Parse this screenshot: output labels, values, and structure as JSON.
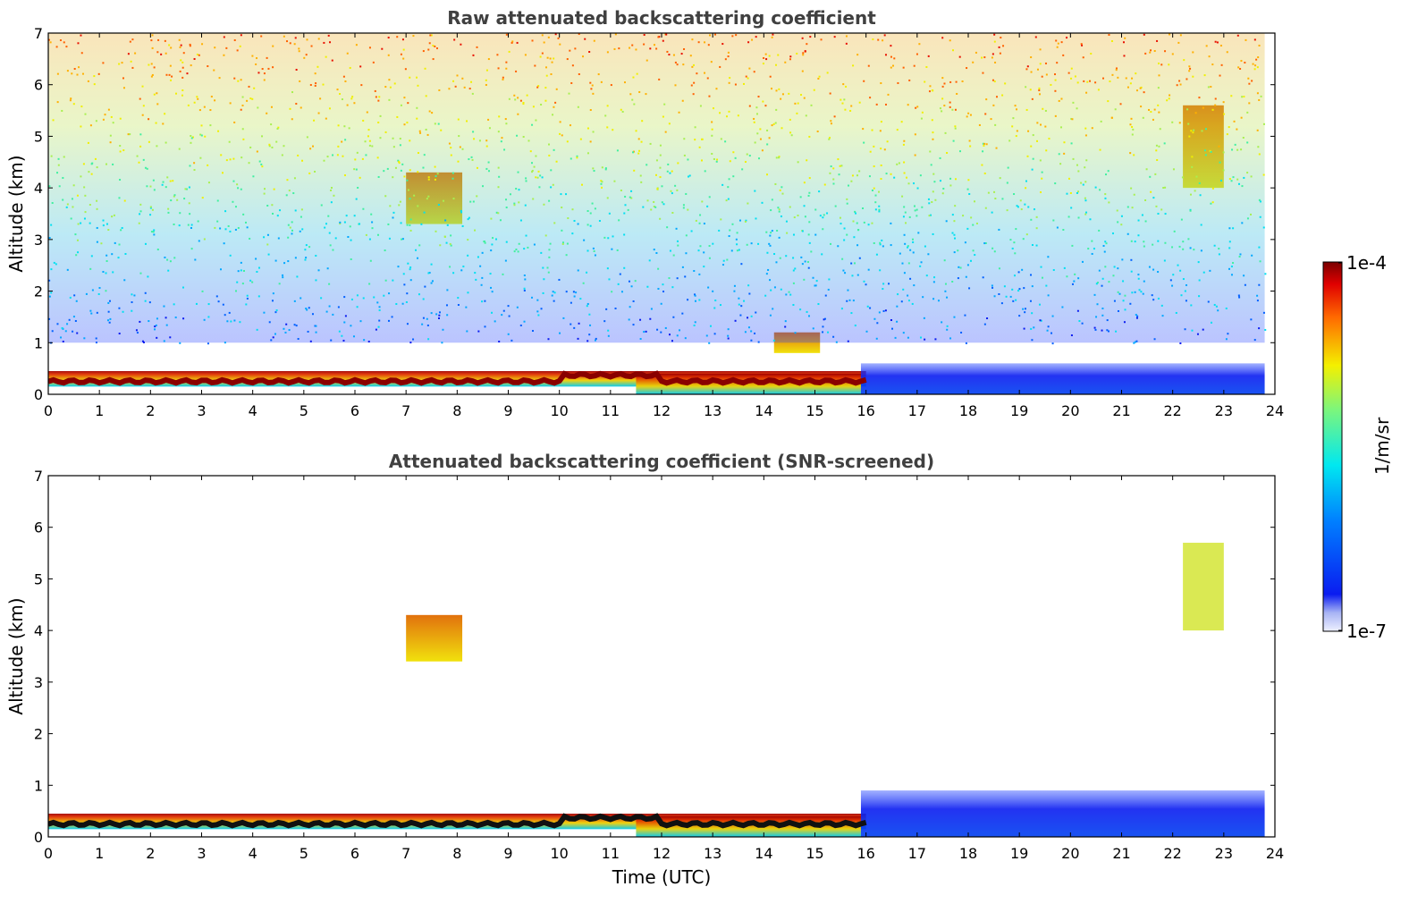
{
  "chart_data": [
    {
      "type": "heatmap",
      "title": "Raw attenuated backscattering coefficient",
      "xlabel": "",
      "ylabel": "Altitude (km)",
      "xlim": [
        0,
        24
      ],
      "ylim": [
        0,
        7
      ],
      "xticks": [
        "0",
        "1",
        "2",
        "3",
        "4",
        "5",
        "6",
        "7",
        "8",
        "9",
        "10",
        "11",
        "12",
        "13",
        "14",
        "15",
        "16",
        "17",
        "18",
        "19",
        "20",
        "21",
        "22",
        "23",
        "24"
      ],
      "yticks": [
        "0",
        "1",
        "2",
        "3",
        "4",
        "5",
        "6",
        "7"
      ],
      "grid": false,
      "colormap": "jet",
      "features": [
        {
          "name": "boundary layer top",
          "x_range": [
            0,
            16
          ],
          "altitude_km": [
            0.15,
            0.45
          ],
          "level": "high"
        },
        {
          "name": "aerosol layer",
          "x_range": [
            11.5,
            15.9
          ],
          "altitude_km": [
            0,
            0.4
          ],
          "level": "high"
        },
        {
          "name": "mid-level cloud",
          "x_range": [
            7.0,
            8.1
          ],
          "altitude_km": [
            3.3,
            4.3
          ],
          "level": "medium-high"
        },
        {
          "name": "elevated layer",
          "x_range": [
            14.2,
            15.1
          ],
          "altitude_km": [
            0.8,
            1.2
          ],
          "level": "medium-high"
        },
        {
          "name": "high cloud",
          "x_range": [
            22.2,
            23.0
          ],
          "altitude_km": [
            4.0,
            5.6
          ],
          "level": "medium-high"
        },
        {
          "name": "low-level signal",
          "x_range": [
            15.9,
            23.8
          ],
          "altitude_km": [
            0,
            0.6
          ],
          "level": "low"
        },
        {
          "name": "upper noise",
          "x_range": [
            0,
            23.8
          ],
          "altitude_km": [
            1,
            7
          ],
          "level": "noise"
        }
      ]
    },
    {
      "type": "heatmap",
      "title": "Attenuated backscattering coefficient (SNR-screened)",
      "xlabel": "Time (UTC)",
      "ylabel": "Altitude (km)",
      "xlim": [
        0,
        24
      ],
      "ylim": [
        0,
        7
      ],
      "xticks": [
        "0",
        "1",
        "2",
        "3",
        "4",
        "5",
        "6",
        "7",
        "8",
        "9",
        "10",
        "11",
        "12",
        "13",
        "14",
        "15",
        "16",
        "17",
        "18",
        "19",
        "20",
        "21",
        "22",
        "23",
        "24"
      ],
      "yticks": [
        "0",
        "1",
        "2",
        "3",
        "4",
        "5",
        "6",
        "7"
      ],
      "grid": false,
      "colormap": "jet",
      "features": [
        {
          "name": "boundary layer top",
          "x_range": [
            0,
            16
          ],
          "altitude_km": [
            0.15,
            0.45
          ],
          "level": "high"
        },
        {
          "name": "aerosol layer",
          "x_range": [
            11.5,
            15.9
          ],
          "altitude_km": [
            0,
            0.4
          ],
          "level": "high"
        },
        {
          "name": "mid-level cloud",
          "x_range": [
            7.0,
            8.1
          ],
          "altitude_km": [
            3.4,
            4.3
          ],
          "level": "medium-high"
        },
        {
          "name": "high cloud",
          "x_range": [
            22.2,
            23.0
          ],
          "altitude_km": [
            4.0,
            5.7
          ],
          "level": "medium"
        },
        {
          "name": "low-level signal",
          "x_range": [
            15.9,
            23.8
          ],
          "altitude_km": [
            0,
            0.9
          ],
          "level": "low"
        }
      ]
    }
  ],
  "colorbar": {
    "label": "1/m/sr",
    "max_label": "1e-4",
    "min_label": "1e-7",
    "range": [
      1e-07,
      0.0001
    ],
    "scale": "log"
  }
}
